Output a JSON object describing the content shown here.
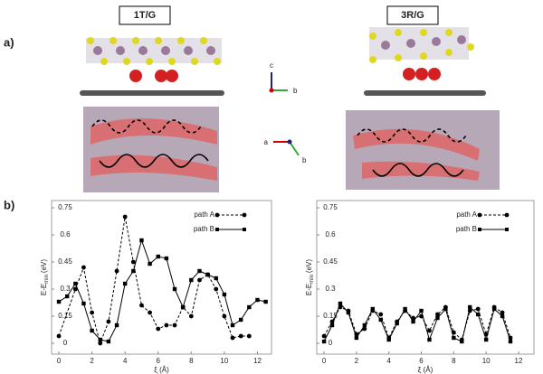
{
  "figure": {
    "panel_a_label": "a)",
    "panel_b_label": "b)",
    "structures": [
      {
        "title": "1T/G"
      },
      {
        "title": "3R/G"
      }
    ],
    "axis_glyphs": {
      "side": [
        "c",
        "b"
      ],
      "top": [
        "a",
        "b"
      ]
    }
  },
  "chart_data": [
    {
      "type": "line",
      "xlabel": "ξ (Å)",
      "ylabel": {
        "main": "E-E",
        "sub": "min",
        "unit": "(eV)"
      },
      "xlim": [
        -0.44,
        12.85
      ],
      "ylim": [
        -0.06,
        0.79
      ],
      "xticks": [
        0,
        2,
        4,
        6,
        8,
        10,
        12
      ],
      "yticks": [
        0,
        0.15,
        0.3,
        0.45,
        0.6,
        0.75
      ],
      "legend": "upper right",
      "series": [
        {
          "name": "path A",
          "color": "#000000",
          "dash": "dashed",
          "marker": "circle",
          "x": [
            0,
            1,
            1.5,
            2,
            2.5,
            3,
            3.5,
            4,
            4.5,
            5,
            5.5,
            6,
            6.5,
            7,
            7.5,
            8,
            8.5,
            9,
            9.5,
            10,
            10.5,
            11,
            11.5
          ],
          "values": [
            0.04,
            0.3,
            0.42,
            0.17,
            0.0,
            0.12,
            0.4,
            0.7,
            0.45,
            0.21,
            0.17,
            0.08,
            0.1,
            0.1,
            0.2,
            0.15,
            0.35,
            0.38,
            0.3,
            0.15,
            0.03,
            0.04,
            0.04
          ]
        },
        {
          "name": "path B",
          "color": "#000000",
          "dash": "solid",
          "marker": "square",
          "x": [
            0,
            0.5,
            1,
            1.5,
            2,
            2.5,
            3,
            3.5,
            4,
            4.5,
            5,
            5.5,
            6,
            6.5,
            7,
            7.5,
            8,
            8.5,
            9,
            9.5,
            10,
            10.5,
            11,
            11.5,
            12,
            12.5
          ],
          "values": [
            0.23,
            0.26,
            0.33,
            0.22,
            0.07,
            0.02,
            0.01,
            0.1,
            0.33,
            0.4,
            0.57,
            0.44,
            0.48,
            0.47,
            0.3,
            0.2,
            0.35,
            0.4,
            0.38,
            0.36,
            0.27,
            0.1,
            0.13,
            0.2,
            0.24,
            0.23
          ]
        }
      ]
    },
    {
      "type": "line",
      "xlabel": "ξ (Å)",
      "ylabel": {
        "main": "E-E",
        "sub": "min",
        "unit": "(eV)"
      },
      "xlim": [
        -0.45,
        12.95
      ],
      "ylim": [
        -0.06,
        0.79
      ],
      "xticks": [
        0,
        2,
        4,
        6,
        8,
        10,
        12
      ],
      "yticks": [
        0,
        0.15,
        0.3,
        0.45,
        0.6,
        0.75
      ],
      "legend": "upper right",
      "series": [
        {
          "name": "path A",
          "color": "#000000",
          "dash": "dashed",
          "marker": "circle",
          "x": [
            0,
            0.5,
            1,
            1.5,
            2,
            2.5,
            3,
            3.5,
            4,
            4.5,
            5,
            5.5,
            6,
            6.5,
            7,
            7.5,
            8,
            8.5,
            9,
            9.5,
            10,
            10.5,
            11,
            11.5
          ],
          "values": [
            0.04,
            0.12,
            0.2,
            0.18,
            0.05,
            0.08,
            0.18,
            0.16,
            0.03,
            0.12,
            0.18,
            0.14,
            0.15,
            0.07,
            0.16,
            0.2,
            0.06,
            0.02,
            0.18,
            0.19,
            0.05,
            0.2,
            0.17,
            0.03
          ]
        },
        {
          "name": "path B",
          "color": "#000000",
          "dash": "solid",
          "marker": "square",
          "x": [
            0,
            0.5,
            1,
            1.5,
            2,
            2.5,
            3,
            3.5,
            4,
            4.5,
            5,
            5.5,
            6,
            6.5,
            7,
            7.5,
            8,
            8.5,
            9,
            9.5,
            10,
            10.5,
            11,
            11.5
          ],
          "values": [
            0.01,
            0.1,
            0.22,
            0.17,
            0.03,
            0.1,
            0.19,
            0.13,
            0.02,
            0.11,
            0.19,
            0.12,
            0.18,
            0.02,
            0.14,
            0.19,
            0.03,
            0.01,
            0.2,
            0.16,
            0.02,
            0.19,
            0.15,
            0.01
          ]
        }
      ]
    }
  ]
}
